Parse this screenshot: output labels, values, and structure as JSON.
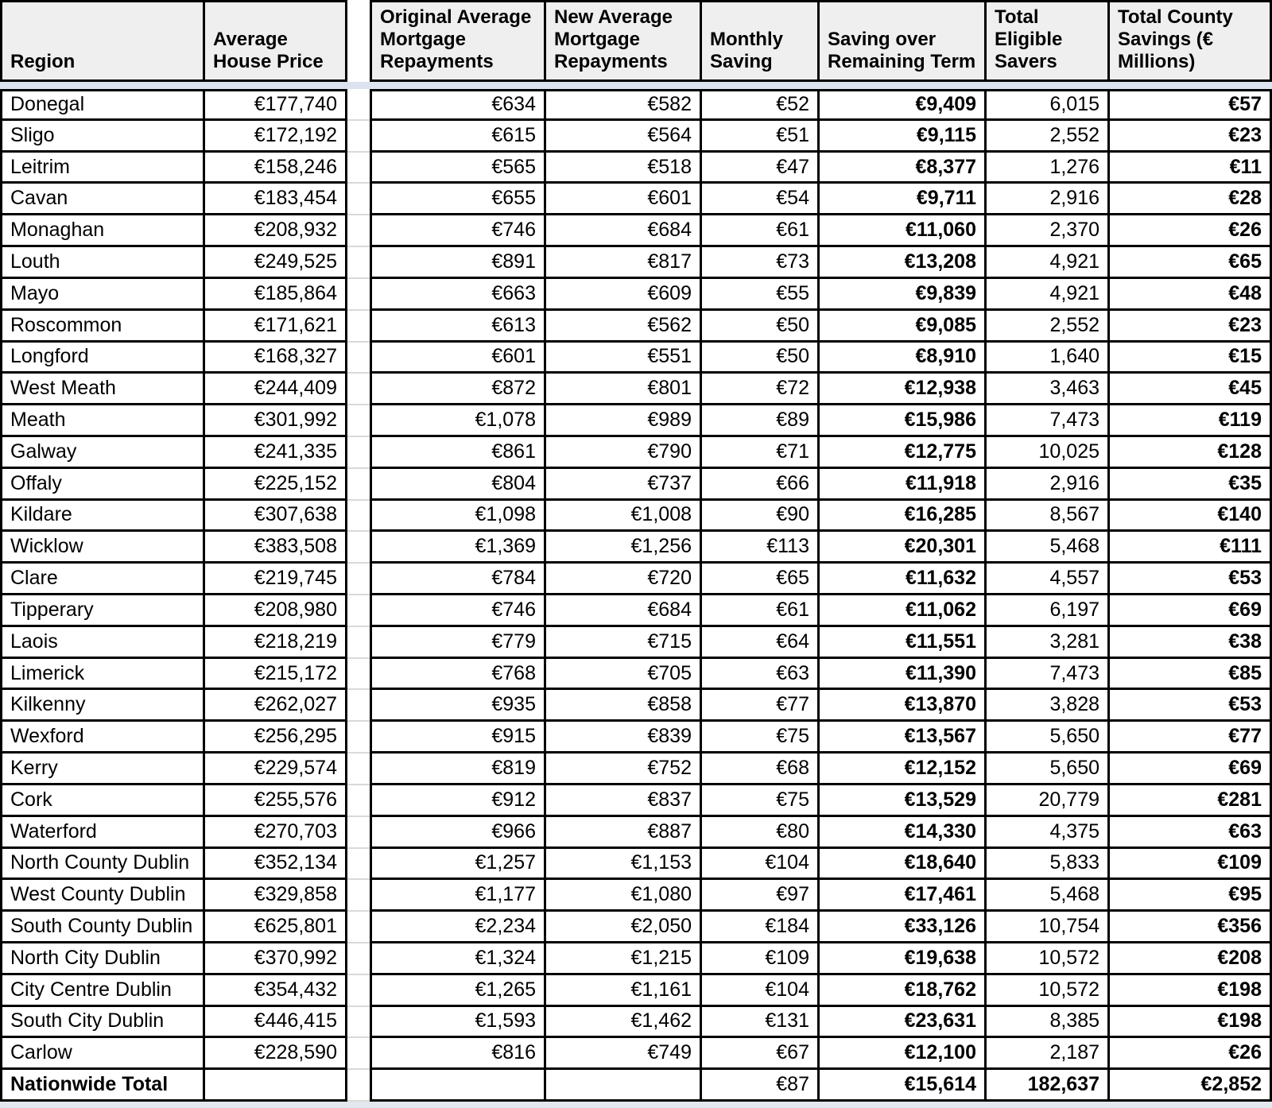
{
  "colors": {
    "background": "#ffffff",
    "header_bg": "#efefef",
    "divider_strip": "#dce2ee",
    "bottom_strip": "#e3e7ee",
    "table_border": "#000000",
    "gap_gridline": "#d9d9d9"
  },
  "chart_data": {
    "type": "table",
    "columns": [
      "Region",
      "Average House Price",
      "Original Average Mortgage Repayments",
      "New Average Mortgage Repayments",
      "Monthly Saving",
      "Saving over Remaining Term",
      "Total Eligible Savers",
      "Total County Savings (€ Millions)"
    ],
    "rows": [
      [
        "Donegal",
        "€177,740",
        "€634",
        "€582",
        "€52",
        "€9,409",
        "6,015",
        "€57"
      ],
      [
        "Sligo",
        "€172,192",
        "€615",
        "€564",
        "€51",
        "€9,115",
        "2,552",
        "€23"
      ],
      [
        "Leitrim",
        "€158,246",
        "€565",
        "€518",
        "€47",
        "€8,377",
        "1,276",
        "€11"
      ],
      [
        "Cavan",
        "€183,454",
        "€655",
        "€601",
        "€54",
        "€9,711",
        "2,916",
        "€28"
      ],
      [
        "Monaghan",
        "€208,932",
        "€746",
        "€684",
        "€61",
        "€11,060",
        "2,370",
        "€26"
      ],
      [
        "Louth",
        "€249,525",
        "€891",
        "€817",
        "€73",
        "€13,208",
        "4,921",
        "€65"
      ],
      [
        "Mayo",
        "€185,864",
        "€663",
        "€609",
        "€55",
        "€9,839",
        "4,921",
        "€48"
      ],
      [
        "Roscommon",
        "€171,621",
        "€613",
        "€562",
        "€50",
        "€9,085",
        "2,552",
        "€23"
      ],
      [
        "Longford",
        "€168,327",
        "€601",
        "€551",
        "€50",
        "€8,910",
        "1,640",
        "€15"
      ],
      [
        "West Meath",
        "€244,409",
        "€872",
        "€801",
        "€72",
        "€12,938",
        "3,463",
        "€45"
      ],
      [
        "Meath",
        "€301,992",
        "€1,078",
        "€989",
        "€89",
        "€15,986",
        "7,473",
        "€119"
      ],
      [
        "Galway",
        "€241,335",
        "€861",
        "€790",
        "€71",
        "€12,775",
        "10,025",
        "€128"
      ],
      [
        "Offaly",
        "€225,152",
        "€804",
        "€737",
        "€66",
        "€11,918",
        "2,916",
        "€35"
      ],
      [
        "Kildare",
        "€307,638",
        "€1,098",
        "€1,008",
        "€90",
        "€16,285",
        "8,567",
        "€140"
      ],
      [
        "Wicklow",
        "€383,508",
        "€1,369",
        "€1,256",
        "€113",
        "€20,301",
        "5,468",
        "€111"
      ],
      [
        "Clare",
        "€219,745",
        "€784",
        "€720",
        "€65",
        "€11,632",
        "4,557",
        "€53"
      ],
      [
        "Tipperary",
        "€208,980",
        "€746",
        "€684",
        "€61",
        "€11,062",
        "6,197",
        "€69"
      ],
      [
        "Laois",
        "€218,219",
        "€779",
        "€715",
        "€64",
        "€11,551",
        "3,281",
        "€38"
      ],
      [
        "Limerick",
        "€215,172",
        "€768",
        "€705",
        "€63",
        "€11,390",
        "7,473",
        "€85"
      ],
      [
        "Kilkenny",
        "€262,027",
        "€935",
        "€858",
        "€77",
        "€13,870",
        "3,828",
        "€53"
      ],
      [
        "Wexford",
        "€256,295",
        "€915",
        "€839",
        "€75",
        "€13,567",
        "5,650",
        "€77"
      ],
      [
        "Kerry",
        "€229,574",
        "€819",
        "€752",
        "€68",
        "€12,152",
        "5,650",
        "€69"
      ],
      [
        "Cork",
        "€255,576",
        "€912",
        "€837",
        "€75",
        "€13,529",
        "20,779",
        "€281"
      ],
      [
        "Waterford",
        "€270,703",
        "€966",
        "€887",
        "€80",
        "€14,330",
        "4,375",
        "€63"
      ],
      [
        "North County Dublin",
        "€352,134",
        "€1,257",
        "€1,153",
        "€104",
        "€18,640",
        "5,833",
        "€109"
      ],
      [
        "West County Dublin",
        "€329,858",
        "€1,177",
        "€1,080",
        "€97",
        "€17,461",
        "5,468",
        "€95"
      ],
      [
        "South County Dublin",
        "€625,801",
        "€2,234",
        "€2,050",
        "€184",
        "€33,126",
        "10,754",
        "€356"
      ],
      [
        "North City Dublin",
        "€370,992",
        "€1,324",
        "€1,215",
        "€109",
        "€19,638",
        "10,572",
        "€208"
      ],
      [
        "City Centre Dublin",
        "€354,432",
        "€1,265",
        "€1,161",
        "€104",
        "€18,762",
        "10,572",
        "€198"
      ],
      [
        "South City Dublin",
        "€446,415",
        "€1,593",
        "€1,462",
        "€131",
        "€23,631",
        "8,385",
        "€198"
      ],
      [
        "Carlow",
        "€228,590",
        "€816",
        "€749",
        "€67",
        "€12,100",
        "2,187",
        "€26"
      ]
    ],
    "total_row": [
      "Nationwide Total",
      "",
      "",
      "",
      "€87",
      "€15,614",
      "182,637",
      "€2,852"
    ]
  }
}
